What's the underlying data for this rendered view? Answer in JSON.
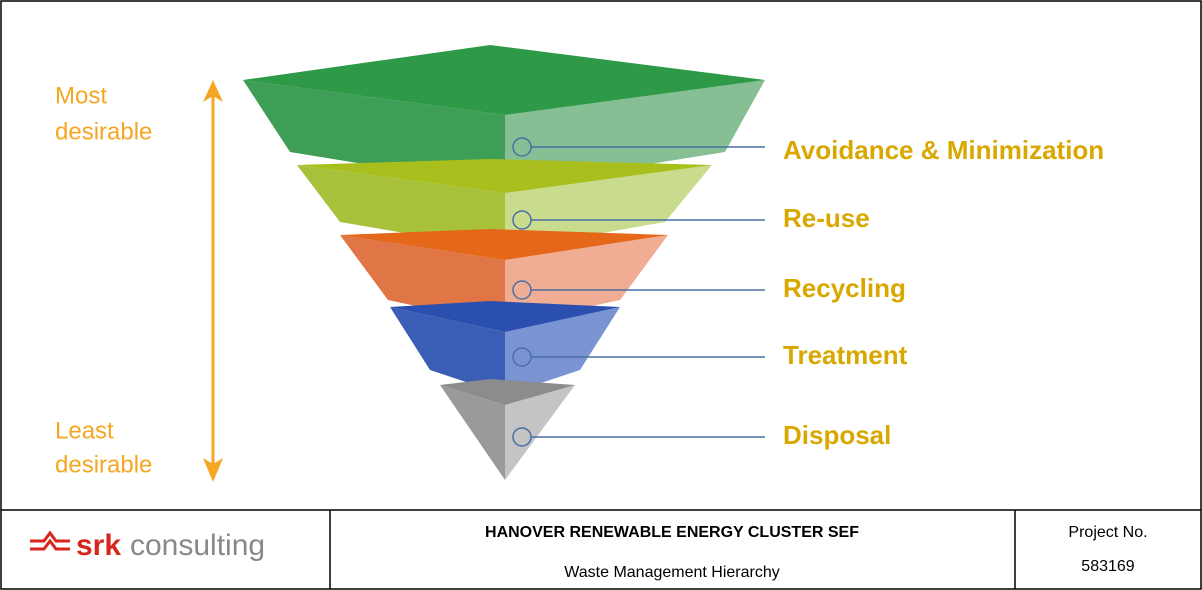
{
  "axis": {
    "top_label": [
      "Most",
      "desirable"
    ],
    "bottom_label": [
      "Least",
      "desirable"
    ]
  },
  "levels": [
    {
      "label": "Avoidance & Minimization"
    },
    {
      "label": "Re-use"
    },
    {
      "label": "Recycling"
    },
    {
      "label": "Treatment"
    },
    {
      "label": "Disposal"
    }
  ],
  "footer": {
    "logo": {
      "brand": "srk",
      "text": "consulting"
    },
    "title": "HANOVER RENEWABLE ENERGY CLUSTER SEF",
    "subtitle": "Waste Management Hierarchy",
    "project_label": "Project No.",
    "project_number": "583169"
  }
}
